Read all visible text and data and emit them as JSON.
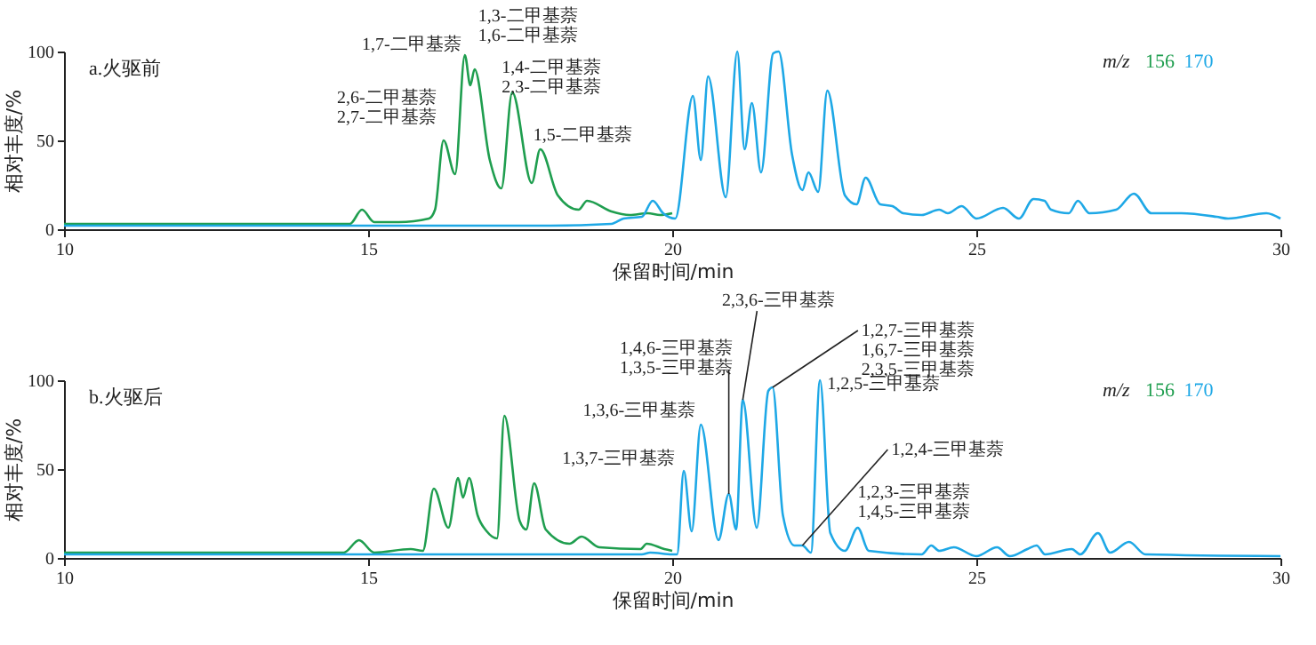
{
  "chart_data": [
    {
      "type": "line",
      "title": "a.火驱前",
      "xlabel": "保留时间/min",
      "ylabel": "相对丰度/%",
      "xlim": [
        10,
        30
      ],
      "xticks": [
        10,
        15,
        20,
        25,
        30
      ],
      "ylim": [
        0,
        100
      ],
      "yticks": [
        0,
        50,
        100
      ],
      "legend": "top right",
      "legend_title": "m/z",
      "series": [
        {
          "name": "156",
          "color": "#1f9e4f",
          "x": [
            10,
            11,
            12,
            13,
            14,
            14.7,
            14.9,
            15.1,
            15.5,
            16.0,
            16.1,
            16.24,
            16.43,
            16.59,
            16.68,
            16.75,
            17.0,
            17.19,
            17.37,
            17.69,
            17.83,
            18.12,
            18.46,
            18.6,
            19.0,
            19.3,
            19.6,
            19.8,
            20.0
          ],
          "values": [
            3,
            3,
            3,
            3,
            3,
            3,
            11,
            4,
            4,
            6,
            11,
            50,
            31,
            98,
            81,
            90,
            39,
            23,
            77,
            26,
            45,
            19,
            11,
            16,
            10,
            8,
            9,
            8,
            9
          ]
        },
        {
          "name": "170",
          "color": "#1ea8e6",
          "x": [
            10,
            12,
            14,
            16,
            18,
            19.0,
            19.2,
            19.5,
            19.68,
            19.85,
            20.05,
            20.34,
            20.47,
            20.59,
            20.88,
            21.07,
            21.19,
            21.31,
            21.46,
            21.66,
            21.75,
            21.97,
            22.14,
            22.24,
            22.4,
            22.55,
            22.84,
            23.03,
            23.18,
            23.42,
            23.62,
            23.8,
            24.1,
            24.39,
            24.53,
            24.76,
            25.0,
            25.44,
            25.7,
            25.94,
            26.12,
            26.23,
            26.52,
            26.67,
            26.86,
            27.3,
            27.59,
            27.88,
            28.37,
            28.95,
            29.14,
            29.77,
            30
          ],
          "values": [
            2,
            2,
            2,
            2,
            2,
            3,
            6,
            7,
            16,
            9,
            6,
            75,
            39,
            86,
            18,
            100,
            45,
            71,
            32,
            99,
            100,
            42,
            22,
            32,
            21,
            78,
            19,
            14,
            29,
            14,
            13,
            9,
            8,
            11,
            9,
            13,
            6,
            12,
            6,
            17,
            16,
            11,
            9,
            16,
            9,
            11,
            20,
            9,
            9,
            7,
            6,
            9,
            6
          ]
        }
      ],
      "annotations": [
        {
          "text": "2,6-二甲基萘\n2,7-二甲基萘",
          "x": 16.24,
          "y": 50
        },
        {
          "text": "1,7-二甲基萘",
          "x": 16.59,
          "y": 98
        },
        {
          "text": "1,3-二甲基萘\n1,6-二甲基萘",
          "x": 16.75,
          "y": 90
        },
        {
          "text": "1,4-二甲基萘\n2,3-二甲基萘",
          "x": 17.37,
          "y": 77
        },
        {
          "text": "1,5-二甲基萘",
          "x": 17.83,
          "y": 45
        }
      ]
    },
    {
      "type": "line",
      "title": "b.火驱后",
      "xlabel": "保留时间/min",
      "ylabel": "相对丰度/%",
      "xlim": [
        10,
        30
      ],
      "xticks": [
        10,
        15,
        20,
        25,
        30
      ],
      "ylim": [
        0,
        100
      ],
      "yticks": [
        0,
        50,
        100
      ],
      "legend": "top right",
      "legend_title": "m/z",
      "series": [
        {
          "name": "156",
          "color": "#1f9e4f",
          "x": [
            10,
            11,
            12,
            13,
            14,
            14.6,
            14.85,
            15.1,
            15.7,
            15.9,
            16.08,
            16.32,
            16.48,
            16.56,
            16.66,
            16.8,
            16.95,
            17.12,
            17.24,
            17.49,
            17.6,
            17.73,
            17.92,
            18.31,
            18.51,
            18.8,
            19.48,
            19.58,
            19.87,
            20.0
          ],
          "values": [
            3,
            3,
            3,
            3,
            3,
            3,
            10,
            3,
            5,
            4,
            39,
            17,
            45,
            34,
            45,
            24,
            15,
            11,
            80,
            21,
            16,
            42,
            16,
            8,
            12,
            6,
            5,
            8,
            5,
            4
          ]
        },
        {
          "name": "170",
          "color": "#1ea8e6",
          "x": [
            10,
            12,
            14,
            16,
            18,
            19.5,
            19.64,
            20.0,
            20.08,
            20.19,
            20.32,
            20.47,
            20.76,
            20.93,
            21.05,
            21.16,
            21.39,
            21.58,
            21.65,
            21.82,
            22.01,
            22.14,
            22.28,
            22.43,
            22.6,
            22.84,
            23.05,
            23.23,
            24.1,
            24.26,
            24.39,
            24.63,
            25.0,
            25.34,
            25.55,
            25.84,
            25.99,
            26.13,
            26.57,
            26.71,
            27.0,
            27.2,
            27.51,
            27.78,
            30
          ],
          "values": [
            2,
            2,
            2,
            2,
            2,
            2,
            3,
            2,
            2,
            49,
            15,
            75,
            10,
            36,
            16,
            89,
            17,
            94,
            96,
            24,
            7,
            7,
            3,
            100,
            14,
            4,
            17,
            4,
            2,
            7,
            4,
            6,
            1,
            6,
            1,
            5,
            7,
            2,
            5,
            2,
            14,
            3,
            9,
            2,
            1
          ]
        }
      ],
      "annotations": [
        {
          "text": "1,3,7-三甲基萘",
          "x": 20.19,
          "y": 49
        },
        {
          "text": "1,3,6-三甲基萘",
          "x": 20.47,
          "y": 75
        },
        {
          "text": "1,4,6-三甲基萘\n1,3,5-三甲基萘",
          "x": 20.93,
          "y": 36
        },
        {
          "text": "2,3,6-三甲基萘",
          "x": 21.16,
          "y": 89
        },
        {
          "text": "1,2,7-三甲基萘\n1,6,7-三甲基萘\n2,3,5-三甲基萘",
          "x": 21.65,
          "y": 96
        },
        {
          "text": "1,2,5-三甲基萘",
          "x": 22.43,
          "y": 100
        },
        {
          "text": "1,2,4-三甲基萘",
          "x": 22.14,
          "y": 7
        },
        {
          "text": "1,2,3-三甲基萘\n1,4,5-三甲基萘",
          "x": 23.05,
          "y": 17
        }
      ]
    }
  ]
}
